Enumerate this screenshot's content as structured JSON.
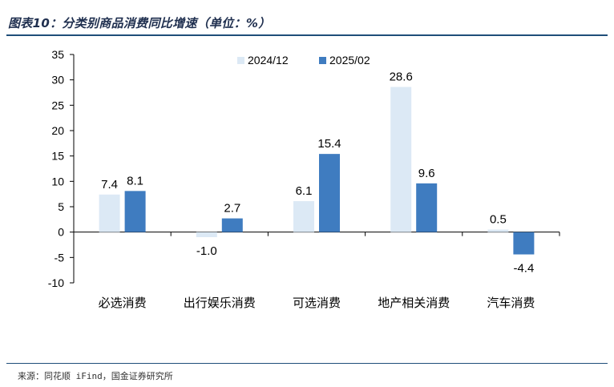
{
  "title": "图表10：分类别商品消费同比增速（单位：%）",
  "source": "来源：同花顺 iFind，国金证券研究所",
  "chart_data": {
    "type": "bar",
    "categories": [
      "必选消费",
      "出行娱乐消费",
      "可选消费",
      "地产相关消费",
      "汽车消费"
    ],
    "series": [
      {
        "name": "2024/12",
        "values": [
          7.4,
          -1.0,
          6.1,
          28.6,
          0.5
        ],
        "color": "#dce9f5"
      },
      {
        "name": "2025/02",
        "values": [
          8.1,
          2.7,
          15.4,
          9.6,
          -4.4
        ],
        "color": "#3f7cc0"
      }
    ],
    "ylim": [
      -10,
      35
    ],
    "yticks": [
      35,
      30,
      25,
      20,
      15,
      10,
      5,
      0,
      -5,
      -10
    ],
    "ytick_labels": [
      "35",
      "30",
      "25",
      "20",
      "15",
      "10",
      "5",
      "0",
      "-5",
      "-10"
    ],
    "data_labels": [
      [
        "7.4",
        "-1.0",
        "6.1",
        "28.6",
        "0.5"
      ],
      [
        "8.1",
        "2.7",
        "15.4",
        "9.6",
        "-4.4"
      ]
    ],
    "xlabel": "",
    "ylabel": "",
    "legend_position": "top"
  }
}
